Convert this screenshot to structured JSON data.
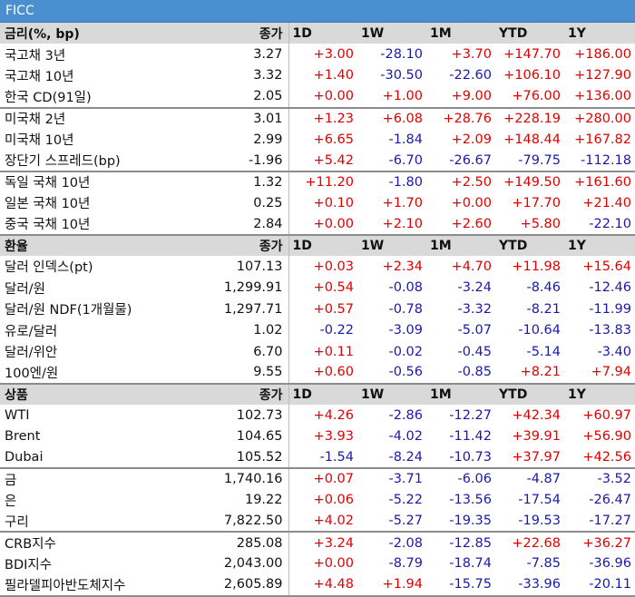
{
  "title": "FICC",
  "sections": [
    {
      "header": {
        "name": "금리(%, bp)",
        "close": "종가",
        "cols": [
          "1D",
          "1W",
          "1M",
          "YTD",
          "1Y"
        ]
      },
      "groups": [
        [
          {
            "name": "국고채 3년",
            "close": "3.27",
            "chg": [
              "+3.00",
              "-28.10",
              "+3.70",
              "+147.70",
              "+186.00"
            ]
          },
          {
            "name": "국고채 10년",
            "close": "3.32",
            "chg": [
              "+1.40",
              "-30.50",
              "-22.60",
              "+106.10",
              "+127.90"
            ]
          },
          {
            "name": "한국 CD(91일)",
            "close": "2.05",
            "chg": [
              "+0.00",
              "+1.00",
              "+9.00",
              "+76.00",
              "+136.00"
            ]
          }
        ],
        [
          {
            "name": "미국채 2년",
            "close": "3.01",
            "chg": [
              "+1.23",
              "+6.08",
              "+28.76",
              "+228.19",
              "+280.00"
            ]
          },
          {
            "name": "미국채 10년",
            "close": "2.99",
            "chg": [
              "+6.65",
              "-1.84",
              "+2.09",
              "+148.44",
              "+167.82"
            ]
          },
          {
            "name": "장단기 스프레드(bp)",
            "close": "-1.96",
            "chg": [
              "+5.42",
              "-6.70",
              "-26.67",
              "-79.75",
              "-112.18"
            ]
          }
        ],
        [
          {
            "name": "독일 국채 10년",
            "close": "1.32",
            "chg": [
              "+11.20",
              "-1.80",
              "+2.50",
              "+149.50",
              "+161.60"
            ]
          },
          {
            "name": "일본 국채 10년",
            "close": "0.25",
            "chg": [
              "+0.10",
              "+1.70",
              "+0.00",
              "+17.70",
              "+21.40"
            ]
          },
          {
            "name": "중국 국채 10년",
            "close": "2.84",
            "chg": [
              "+0.00",
              "+2.10",
              "+2.60",
              "+5.80",
              "-22.10"
            ]
          }
        ]
      ]
    },
    {
      "header": {
        "name": "환율",
        "close": "종가",
        "cols": [
          "1D",
          "1W",
          "1M",
          "YTD",
          "1Y"
        ]
      },
      "groups": [
        [
          {
            "name": "달러 인덱스(pt)",
            "close": "107.13",
            "chg": [
              "+0.03",
              "+2.34",
              "+4.70",
              "+11.98",
              "+15.64"
            ]
          },
          {
            "name": "달러/원",
            "close": "1,299.91",
            "chg": [
              "+0.54",
              "-0.08",
              "-3.24",
              "-8.46",
              "-12.46"
            ]
          },
          {
            "name": "달러/원 NDF(1개월물)",
            "close": "1,297.71",
            "chg": [
              "+0.57",
              "-0.78",
              "-3.32",
              "-8.21",
              "-11.99"
            ]
          },
          {
            "name": "유로/달러",
            "close": "1.02",
            "chg": [
              "-0.22",
              "-3.09",
              "-5.07",
              "-10.64",
              "-13.83"
            ]
          },
          {
            "name": "달러/위안",
            "close": "6.70",
            "chg": [
              "+0.11",
              "-0.02",
              "-0.45",
              "-5.14",
              "-3.40"
            ]
          },
          {
            "name": "100엔/원",
            "close": "9.55",
            "chg": [
              "+0.60",
              "-0.56",
              "-0.85",
              "+8.21",
              "+7.94"
            ]
          }
        ]
      ]
    },
    {
      "header": {
        "name": "상품",
        "close": "종가",
        "cols": [
          "1D",
          "1W",
          "1M",
          "YTD",
          "1Y"
        ]
      },
      "groups": [
        [
          {
            "name": "WTI",
            "close": "102.73",
            "chg": [
              "+4.26",
              "-2.86",
              "-12.27",
              "+42.34",
              "+60.97"
            ]
          },
          {
            "name": "Brent",
            "close": "104.65",
            "chg": [
              "+3.93",
              "-4.02",
              "-11.42",
              "+39.91",
              "+56.90"
            ]
          },
          {
            "name": "Dubai",
            "close": "105.52",
            "chg": [
              "-1.54",
              "-8.24",
              "-10.73",
              "+37.97",
              "+42.56"
            ]
          }
        ],
        [
          {
            "name": "금",
            "close": "1,740.16",
            "chg": [
              "+0.07",
              "-3.71",
              "-6.06",
              "-4.87",
              "-3.52"
            ]
          },
          {
            "name": "은",
            "close": "19.22",
            "chg": [
              "+0.06",
              "-5.22",
              "-13.56",
              "-17.54",
              "-26.47"
            ]
          },
          {
            "name": "구리",
            "close": "7,822.50",
            "chg": [
              "+4.02",
              "-5.27",
              "-19.35",
              "-19.53",
              "-17.27"
            ]
          }
        ],
        [
          {
            "name": "CRB지수",
            "close": "285.08",
            "chg": [
              "+3.24",
              "-2.08",
              "-12.85",
              "+22.68",
              "+36.27"
            ]
          },
          {
            "name": "BDI지수",
            "close": "2,043.00",
            "chg": [
              "+0.00",
              "-8.79",
              "-18.74",
              "-7.85",
              "-36.96"
            ]
          },
          {
            "name": "필라델피아반도체지수",
            "close": "2,605.89",
            "chg": [
              "+4.48",
              "+1.94",
              "-15.75",
              "-33.96",
              "-20.11"
            ]
          }
        ]
      ]
    }
  ],
  "colors": {
    "positive": "#e00000",
    "negative": "#1a1aa8",
    "title_bg": "#4a90d0",
    "header_bg": "#d9d9d9"
  }
}
